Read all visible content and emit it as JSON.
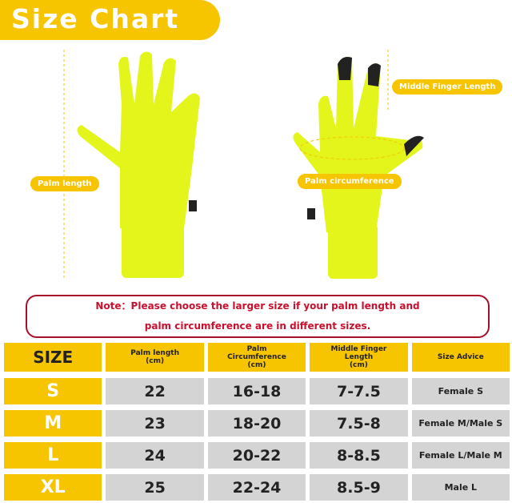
{
  "title": "Size Chart",
  "labels": {
    "palm_length": "Palm length",
    "palm_circumference": "Palm circumference",
    "middle_finger_length": "Middle Finger Length"
  },
  "note": {
    "line1": "Note：Please choose the larger size if your palm length and",
    "line2": "palm circumference are in different sizes."
  },
  "colors": {
    "accent": "#f7c400",
    "glove": "#e4f51c",
    "note": "#c8102e"
  },
  "table": {
    "headers": {
      "size": "SIZE",
      "palm_length": "Palm length\n(cm)",
      "palm_circ": "Palm\nCircumference\n(cm)",
      "finger": "Middle Finger\nLength\n(cm)",
      "advice": "Size Advice"
    },
    "rows": [
      {
        "size": "S",
        "palm_length": "22",
        "palm_circ": "16-18",
        "finger": "7-7.5",
        "advice": "Female S"
      },
      {
        "size": "M",
        "palm_length": "23",
        "palm_circ": "18-20",
        "finger": "7.5-8",
        "advice": "Female M/Male S"
      },
      {
        "size": "L",
        "palm_length": "24",
        "palm_circ": "20-22",
        "finger": "8-8.5",
        "advice": "Female L/Male M"
      },
      {
        "size": "XL",
        "palm_length": "25",
        "palm_circ": "22-24",
        "finger": "8.5-9",
        "advice": "Male L"
      }
    ]
  }
}
